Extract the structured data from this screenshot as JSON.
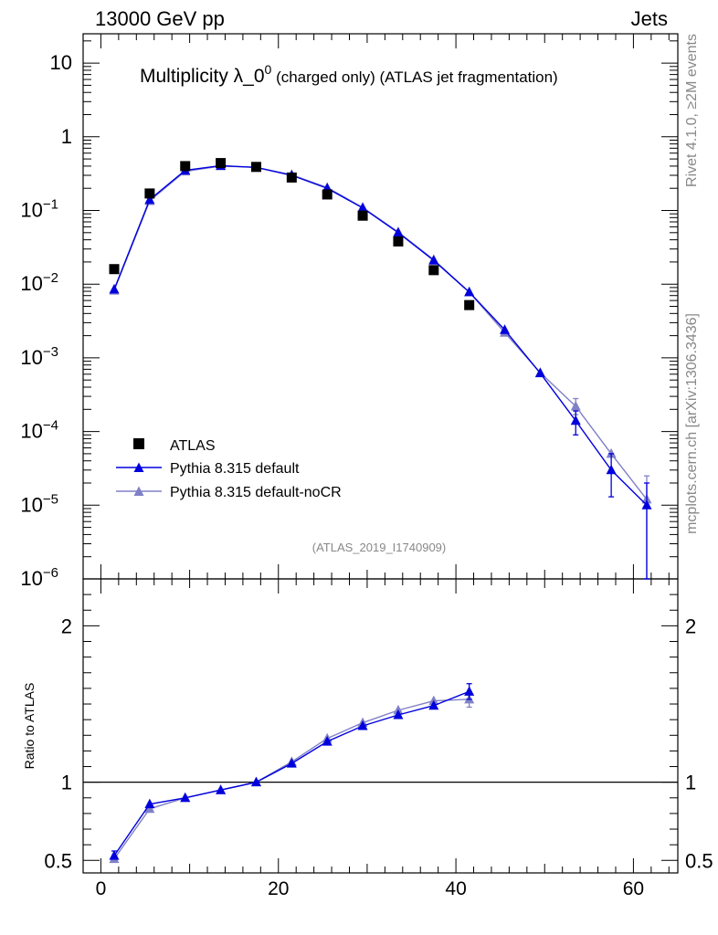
{
  "header": {
    "left": "13000 GeV pp",
    "right": "Jets"
  },
  "title": {
    "main": "Multiplicity λ_0",
    "sup": "0",
    "sub": " (charged only) (ATLAS jet fragmentation)"
  },
  "side_labels": {
    "rivet": "Rivet 4.1.0, ≥2M events",
    "mcplots": "mcplots.cern.ch [arXiv:1306.3436]"
  },
  "analysis_id": "(ATLAS_2019_I1740909)",
  "colors": {
    "atlas": "#000000",
    "default": "#0000dd",
    "nocr": "#8080c8"
  },
  "legend": [
    {
      "label": "ATLAS"
    },
    {
      "label": "Pythia 8.315 default"
    },
    {
      "label": "Pythia 8.315 default-noCR"
    }
  ],
  "chart_data": {
    "type": "scatter",
    "xlim": [
      -2,
      65
    ],
    "main": {
      "yscale": "log",
      "ylim": [
        1e-06,
        25
      ],
      "ticks": [
        {
          "v": 10,
          "b": "10",
          "e": ""
        },
        {
          "v": 1,
          "b": "1",
          "e": ""
        },
        {
          "v": 0.1,
          "b": "10",
          "e": "−1"
        },
        {
          "v": 0.01,
          "b": "10",
          "e": "−2"
        },
        {
          "v": 0.001,
          "b": "10",
          "e": "−3"
        },
        {
          "v": 0.0001,
          "b": "10",
          "e": "−4"
        },
        {
          "v": 1e-05,
          "b": "10",
          "e": "−5"
        },
        {
          "v": 1e-06,
          "b": "10",
          "e": "−6"
        }
      ],
      "series": [
        {
          "name": "ATLAS",
          "marker": "square",
          "x": [
            1.5,
            5.5,
            9.5,
            13.5,
            17.5,
            21.5,
            25.5,
            29.5,
            33.5,
            37.5,
            41.5
          ],
          "y": [
            0.016,
            0.17,
            0.4,
            0.44,
            0.39,
            0.28,
            0.165,
            0.085,
            0.038,
            0.0155,
            0.0052
          ]
        },
        {
          "name": "Pythia 8.315 default",
          "marker": "triangle",
          "x": [
            1.5,
            5.5,
            9.5,
            13.5,
            17.5,
            21.5,
            25.5,
            29.5,
            33.5,
            37.5,
            41.5,
            45.5,
            49.5,
            53.5,
            57.5,
            61.5
          ],
          "y": [
            0.0085,
            0.14,
            0.35,
            0.405,
            0.385,
            0.3,
            0.2,
            0.108,
            0.05,
            0.021,
            0.0078,
            0.0024,
            0.00062,
            0.00014,
            3e-05,
            1e-05
          ],
          "err": [
            [
              61.5,
              1e-06,
              2e-05
            ],
            [
              57.5,
              1.3e-05,
              5e-05
            ],
            [
              53.5,
              9e-05,
              0.00019
            ]
          ]
        },
        {
          "name": "Pythia 8.315 default-noCR",
          "marker": "triangle",
          "x": [
            1.5,
            5.5,
            9.5,
            13.5,
            17.5,
            21.5,
            25.5,
            29.5,
            33.5,
            37.5,
            41.5,
            45.5,
            49.5,
            53.5,
            57.5,
            61.5
          ],
          "y": [
            0.0082,
            0.135,
            0.34,
            0.4,
            0.385,
            0.305,
            0.205,
            0.11,
            0.051,
            0.0215,
            0.0078,
            0.0022,
            0.00063,
            0.00022,
            5e-05,
            1.2e-05
          ],
          "err": [
            [
              61.5,
              1e-06,
              2.5e-05
            ],
            [
              53.5,
              0.00017,
              0.00028
            ]
          ]
        }
      ]
    },
    "ratio": {
      "ylabel": "Ratio to ATLAS",
      "ylim": [
        0.42,
        2.3
      ],
      "reference": 1,
      "ticks": [
        {
          "v": 2,
          "t": "2"
        },
        {
          "v": 1,
          "t": "1"
        },
        {
          "v": 0.5,
          "t": "0.5"
        }
      ],
      "series": [
        {
          "name": "Pythia 8.315 default",
          "x": [
            1.5,
            5.5,
            9.5,
            13.5,
            17.5,
            21.5,
            25.5,
            29.5,
            33.5,
            37.5,
            41.5
          ],
          "y": [
            0.53,
            0.86,
            0.9,
            0.95,
            1.0,
            1.12,
            1.26,
            1.36,
            1.43,
            1.49,
            1.58
          ],
          "err": [
            [
              1.5,
              0.51,
              0.56
            ],
            [
              41.5,
              1.53,
              1.63
            ]
          ]
        },
        {
          "name": "Pythia 8.315 default-noCR",
          "x": [
            1.5,
            5.5,
            9.5,
            13.5,
            17.5,
            21.5,
            25.5,
            29.5,
            33.5,
            37.5,
            41.5
          ],
          "y": [
            0.51,
            0.83,
            0.9,
            0.95,
            1.0,
            1.13,
            1.28,
            1.38,
            1.46,
            1.52,
            1.53
          ],
          "err": [
            [
              1.5,
              0.49,
              0.53
            ],
            [
              41.5,
              1.48,
              1.58
            ]
          ]
        }
      ]
    },
    "xticks": [
      0,
      20,
      40,
      60
    ]
  }
}
